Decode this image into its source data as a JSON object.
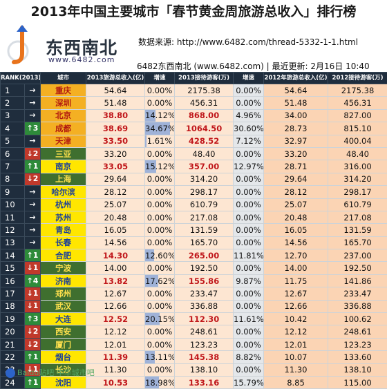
{
  "header": {
    "title": "2013年中国主要城市「春节黄金周旅游总收入」排行榜",
    "logo_text": "东西南北",
    "logo_url": "www.6482.com",
    "source": "数据来源: http://www.6482.com/thread-5332-1-1.html",
    "subtitle": "6482东西南北 (www.6482.com) | 最近更新: 2月16日 10:40"
  },
  "table": {
    "columns": [
      "RANK(2013)",
      "城市",
      "2013旅游总收入(亿)",
      "增速",
      "2013接待游客(万)",
      "增速",
      "2012年旅游总收入(亿)",
      "2012接待游客(万)"
    ],
    "rows": [
      {
        "rank": "1",
        "chg": "→",
        "chg_type": "same",
        "city": "重庆",
        "city_style": "orange",
        "rev13": "54.64",
        "rev_growth": "0.00%",
        "rev_growth_value": 0.0,
        "vis13": "2175.38",
        "vis_growth": "0.00%",
        "rev12": "54.64",
        "vis12": "2175.38",
        "hot": false
      },
      {
        "rank": "2",
        "chg": "→",
        "chg_type": "same",
        "city": "深圳",
        "city_style": "orange",
        "rev13": "51.48",
        "rev_growth": "0.00%",
        "rev_growth_value": 0.0,
        "vis13": "456.31",
        "vis_growth": "0.00%",
        "rev12": "51.48",
        "vis12": "456.31",
        "hot": false
      },
      {
        "rank": "3",
        "chg": "→",
        "chg_type": "same",
        "city": "北京",
        "city_style": "orange",
        "rev13": "38.80",
        "rev_growth": "14.12%",
        "rev_growth_value": 14.12,
        "vis13": "868.00",
        "vis_growth": "4.96%",
        "rev12": "34.00",
        "vis12": "827.00",
        "hot": true
      },
      {
        "rank": "4",
        "chg": "↑3",
        "chg_type": "up",
        "city": "成都",
        "city_style": "orange",
        "rev13": "38.69",
        "rev_growth": "34.67%",
        "rev_growth_value": 34.67,
        "vis13": "1064.50",
        "vis_growth": "30.60%",
        "rev12": "28.73",
        "vis12": "815.10",
        "hot": true
      },
      {
        "rank": "5",
        "chg": "→",
        "chg_type": "same",
        "city": "天津",
        "city_style": "orange",
        "rev13": "33.50",
        "rev_growth": "1.61%",
        "rev_growth_value": 1.61,
        "vis13": "428.52",
        "vis_growth": "7.12%",
        "rev12": "32.97",
        "vis12": "400.04",
        "hot": true
      },
      {
        "rank": "6",
        "chg": "↓2",
        "chg_type": "down",
        "city": "三亚",
        "city_style": "green",
        "rev13": "33.20",
        "rev_growth": "0.00%",
        "rev_growth_value": 0.0,
        "vis13": "48.40",
        "vis_growth": "0.00%",
        "rev12": "33.20",
        "vis12": "48.40",
        "hot": false
      },
      {
        "rank": "7",
        "chg": "↑1",
        "chg_type": "up",
        "city": "南京",
        "city_style": "yellow",
        "rev13": "33.05",
        "rev_growth": "15.12%",
        "rev_growth_value": 15.12,
        "vis13": "357.00",
        "vis_growth": "12.97%",
        "rev12": "28.71",
        "vis12": "316.00",
        "hot": true
      },
      {
        "rank": "8",
        "chg": "↓2",
        "chg_type": "down",
        "city": "上海",
        "city_style": "green",
        "rev13": "29.64",
        "rev_growth": "0.00%",
        "rev_growth_value": 0.0,
        "vis13": "314.20",
        "vis_growth": "0.00%",
        "rev12": "29.64",
        "vis12": "314.20",
        "hot": false
      },
      {
        "rank": "9",
        "chg": "→",
        "chg_type": "same",
        "city": "哈尔滨",
        "city_style": "yellow",
        "rev13": "28.12",
        "rev_growth": "0.00%",
        "rev_growth_value": 0.0,
        "vis13": "298.17",
        "vis_growth": "0.00%",
        "rev12": "28.12",
        "vis12": "298.17",
        "hot": false
      },
      {
        "rank": "10",
        "chg": "→",
        "chg_type": "same",
        "city": "杭州",
        "city_style": "yellow",
        "rev13": "25.07",
        "rev_growth": "0.00%",
        "rev_growth_value": 0.0,
        "vis13": "610.79",
        "vis_growth": "0.00%",
        "rev12": "25.07",
        "vis12": "610.79",
        "hot": false
      },
      {
        "rank": "11",
        "chg": "→",
        "chg_type": "same",
        "city": "苏州",
        "city_style": "yellow",
        "rev13": "20.48",
        "rev_growth": "0.00%",
        "rev_growth_value": 0.0,
        "vis13": "217.08",
        "vis_growth": "0.00%",
        "rev12": "20.48",
        "vis12": "217.08",
        "hot": false
      },
      {
        "rank": "12",
        "chg": "→",
        "chg_type": "same",
        "city": "青岛",
        "city_style": "yellow",
        "rev13": "16.05",
        "rev_growth": "0.00%",
        "rev_growth_value": 0.0,
        "vis13": "131.59",
        "vis_growth": "0.00%",
        "rev12": "16.05",
        "vis12": "131.59",
        "hot": false
      },
      {
        "rank": "13",
        "chg": "→",
        "chg_type": "same",
        "city": "长春",
        "city_style": "yellow",
        "rev13": "14.56",
        "rev_growth": "0.00%",
        "rev_growth_value": 0.0,
        "vis13": "165.70",
        "vis_growth": "0.00%",
        "rev12": "14.56",
        "vis12": "165.70",
        "hot": false
      },
      {
        "rank": "14",
        "chg": "↑1",
        "chg_type": "up",
        "city": "合肥",
        "city_style": "yellow",
        "rev13": "14.30",
        "rev_growth": "12.60%",
        "rev_growth_value": 12.6,
        "vis13": "265.00",
        "vis_growth": "11.81%",
        "rev12": "12.70",
        "vis12": "237.00",
        "hot": true
      },
      {
        "rank": "15",
        "chg": "↓1",
        "chg_type": "down",
        "city": "宁波",
        "city_style": "green",
        "rev13": "14.00",
        "rev_growth": "0.00%",
        "rev_growth_value": 0.0,
        "vis13": "192.50",
        "vis_growth": "0.00%",
        "rev12": "14.00",
        "vis12": "192.50",
        "hot": false
      },
      {
        "rank": "16",
        "chg": "↑4",
        "chg_type": "up",
        "city": "济南",
        "city_style": "yellow",
        "rev13": "13.82",
        "rev_growth": "17.62%",
        "rev_growth_value": 17.62,
        "vis13": "155.86",
        "vis_growth": "9.87%",
        "rev12": "11.75",
        "vis12": "141.86",
        "hot": true
      },
      {
        "rank": "17",
        "chg": "↓1",
        "chg_type": "down",
        "city": "郑州",
        "city_style": "green",
        "rev13": "12.67",
        "rev_growth": "0.00%",
        "rev_growth_value": 0.0,
        "vis13": "233.47",
        "vis_growth": "0.00%",
        "rev12": "12.67",
        "vis12": "233.47",
        "hot": false
      },
      {
        "rank": "18",
        "chg": "↓1",
        "chg_type": "down",
        "city": "武汉",
        "city_style": "green",
        "rev13": "12.66",
        "rev_growth": "0.00%",
        "rev_growth_value": 0.0,
        "vis13": "336.88",
        "vis_growth": "0.00%",
        "rev12": "12.66",
        "vis12": "336.88",
        "hot": false
      },
      {
        "rank": "19",
        "chg": "↑3",
        "chg_type": "up",
        "city": "大连",
        "city_style": "yellow",
        "rev13": "12.52",
        "rev_growth": "20.15%",
        "rev_growth_value": 20.15,
        "vis13": "112.30",
        "vis_growth": "11.61%",
        "rev12": "10.42",
        "vis12": "100.62",
        "hot": true
      },
      {
        "rank": "20",
        "chg": "↓2",
        "chg_type": "down",
        "city": "西安",
        "city_style": "green",
        "rev13": "12.12",
        "rev_growth": "0.00%",
        "rev_growth_value": 0.0,
        "vis13": "248.61",
        "vis_growth": "0.00%",
        "rev12": "12.12",
        "vis12": "248.61",
        "hot": false
      },
      {
        "rank": "21",
        "chg": "↓2",
        "chg_type": "down",
        "city": "厦门",
        "city_style": "green",
        "rev13": "12.01",
        "rev_growth": "0.00%",
        "rev_growth_value": 0.0,
        "vis13": "123.23",
        "vis_growth": "0.00%",
        "rev12": "12.01",
        "vis12": "123.23",
        "hot": false
      },
      {
        "rank": "22",
        "chg": "↑1",
        "chg_type": "up",
        "city": "烟台",
        "city_style": "yellow",
        "rev13": "11.39",
        "rev_growth": "13.11%",
        "rev_growth_value": 13.11,
        "vis13": "145.38",
        "vis_growth": "8.82%",
        "rev12": "10.07",
        "vis12": "133.60",
        "hot": true
      },
      {
        "rank": "23",
        "chg": "↓1",
        "chg_type": "down",
        "city": "长沙",
        "city_style": "green",
        "rev13": "11.30",
        "rev_growth": "0.00%",
        "rev_growth_value": 0.0,
        "vis13": "138.10",
        "vis_growth": "0.00%",
        "rev12": "11.30",
        "vis12": "138.10",
        "hot": false
      },
      {
        "rank": "24",
        "chg": "↑1",
        "chg_type": "up",
        "city": "沈阳",
        "city_style": "yellow",
        "rev13": "10.53",
        "rev_growth": "18.98%",
        "rev_growth_value": 18.98,
        "vis13": "133.16",
        "vis_growth": "15.79%",
        "rev12": "8.85",
        "vis12": "115.00",
        "hot": true
      }
    ]
  },
  "watermark": "Baidu贴吧 中华城市吧",
  "colors": {
    "header_bg": "#1f2d3d",
    "up": "#2e8b3a",
    "down": "#c0392b",
    "city_orange": "#f4b023",
    "city_yellow": "#ffe600",
    "city_green": "#3f6f2f",
    "cell_bg": "#fde6d2",
    "hot_text": "#c0171b",
    "growth_bar": "#9fb2d8"
  }
}
